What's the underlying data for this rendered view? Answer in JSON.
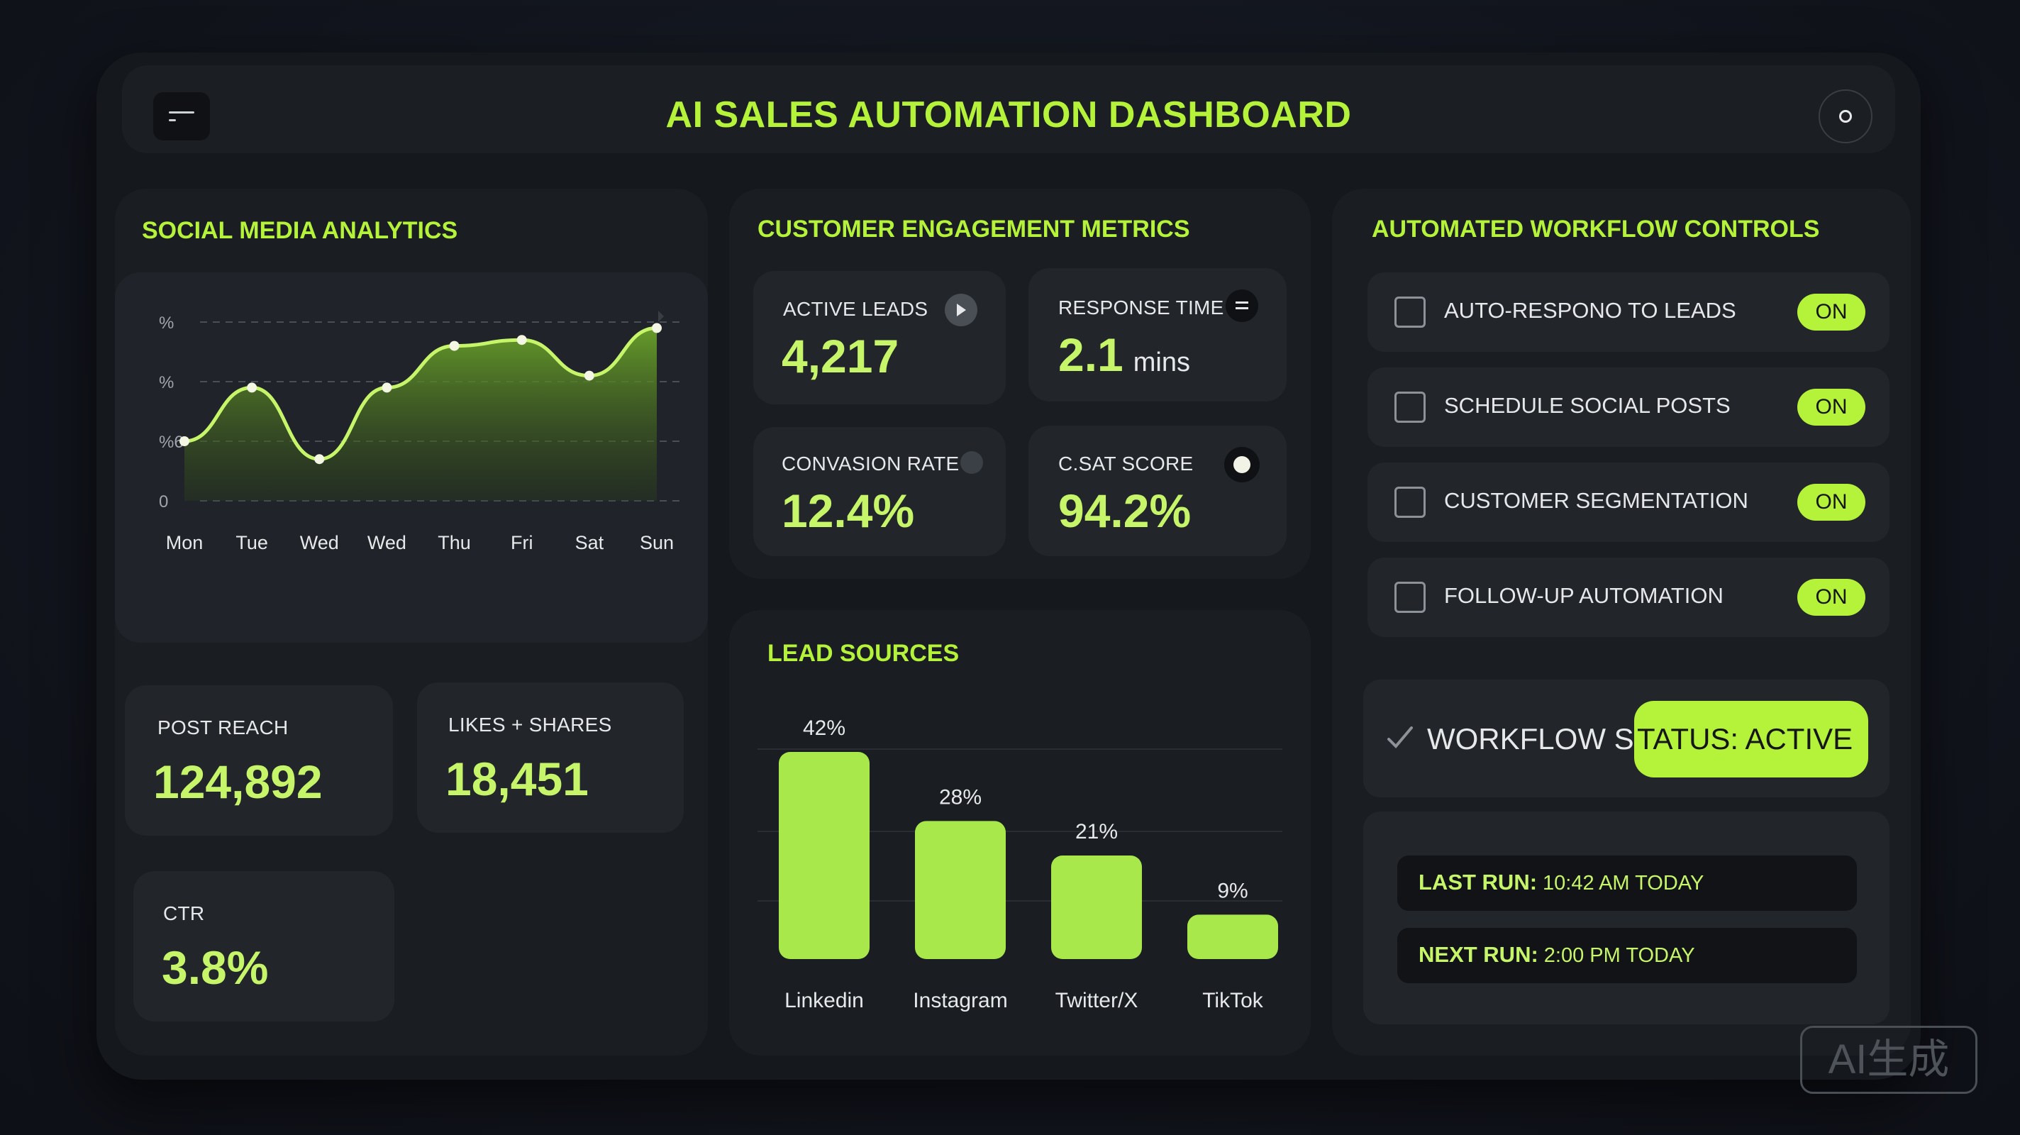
{
  "header": {
    "title": "AI SALES AUTOMATION DASHBOARD",
    "menu_icon": "menu-icon",
    "circle_icon": "circle-icon"
  },
  "social": {
    "title": "SOCIAL MEDIA ANALYTICS",
    "post_reach": {
      "label": "POST REACH",
      "value": "124,892"
    },
    "likes_shares": {
      "label": "LIKES + SHARES",
      "value": "18,451"
    },
    "ctr": {
      "label": "CTR",
      "value": "3.8%"
    }
  },
  "engagement": {
    "title": "CUSTOMER ENGAGEMENT METRICS",
    "active_leads": {
      "label": "ACTIVE LEADS",
      "value": "4,217",
      "icon": "arrow-icon"
    },
    "response_time": {
      "label": "RESPONSE TIME",
      "value": "2.1",
      "unit": "mins",
      "icon": "equals-icon"
    },
    "conversion": {
      "label": "CONVASION RATE",
      "value": "12.4%",
      "icon": "dot-icon"
    },
    "csat": {
      "label": "C.SAT SCORE",
      "value": "94.2%",
      "icon": "toggle-dot-icon"
    }
  },
  "lead_sources": {
    "title": "LEAD SOURCES"
  },
  "workflow": {
    "title": "AUTOMATED WORKFLOW CONTROLS",
    "items": [
      {
        "label": "AUTO-RESPONO TO LEADS",
        "state": "ON"
      },
      {
        "label": "SCHEDULE SOCIAL POSTS",
        "state": "ON"
      },
      {
        "label": "CUSTOMER SEGMENTATION",
        "state": "ON"
      },
      {
        "label": "FOLLOW-UP AUTOMATION",
        "state": "ON"
      }
    ],
    "status_prefix": "WORKFLOW S",
    "status_pill": "TATUS: ACTIVE",
    "last_run": {
      "key": "LAST RUN:",
      "value": "10:42 AM TODAY"
    },
    "next_run": {
      "key": "NEXT RUN:",
      "value": "2:00 PM TODAY"
    }
  },
  "watermark": "AI生成",
  "chart_data": [
    {
      "type": "area",
      "title": "",
      "categories": [
        "Mon",
        "Tue",
        "Wed",
        "Wed",
        "Thu",
        "Fri",
        "Sat",
        "Sun"
      ],
      "y_tick_labels": [
        "0",
        "%6",
        "%",
        "%"
      ],
      "values": [
        1.0,
        1.9,
        0.7,
        1.9,
        2.6,
        2.7,
        2.1,
        2.9
      ],
      "ylim": [
        0,
        3
      ],
      "grid": true,
      "colors": {
        "line": "#c6f56a",
        "fill": "#6aa22a"
      }
    },
    {
      "type": "bar",
      "title": "LEAD SOURCES",
      "categories": [
        "Linkedin",
        "Instagram",
        "Twitter/X",
        "TikTok"
      ],
      "values": [
        42,
        28,
        21,
        9
      ],
      "value_labels": [
        "42%",
        "28%",
        "21%",
        "9%"
      ],
      "ylim": [
        0,
        42
      ],
      "colors": {
        "bar": "#a8e84a"
      }
    }
  ]
}
